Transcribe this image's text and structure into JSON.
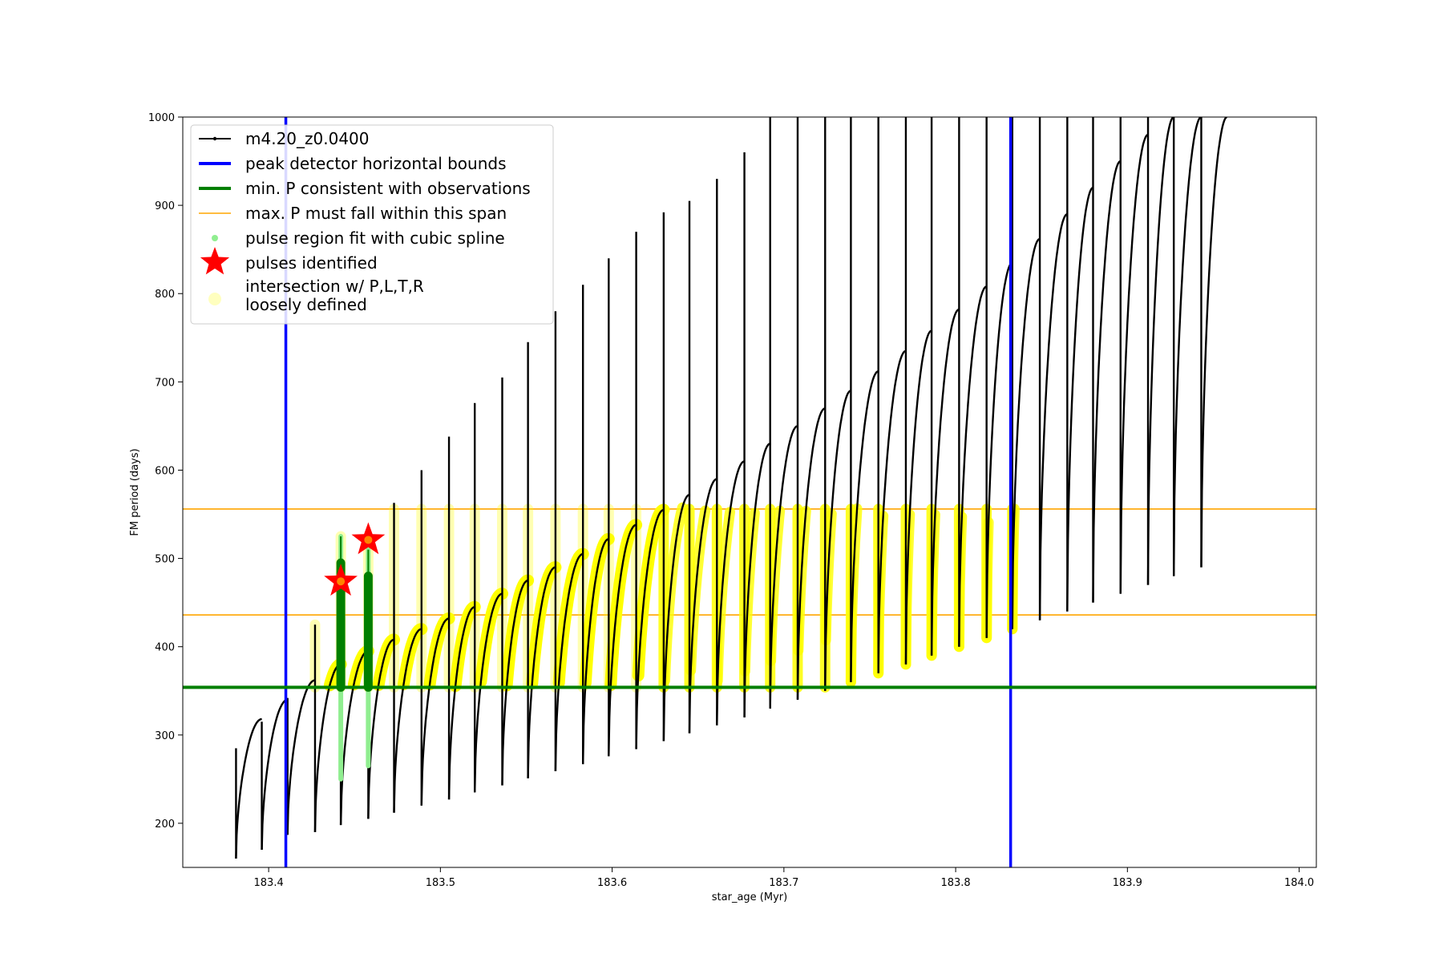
{
  "chart_data": {
    "type": "scatter",
    "title": "",
    "xlabel": "star_age (Myr)",
    "ylabel": "FM period (days)",
    "xlim": [
      183.35,
      184.01
    ],
    "ylim": [
      150,
      1000
    ],
    "xticks": [
      183.4,
      183.5,
      183.6,
      183.7,
      183.8,
      183.9,
      184.0
    ],
    "xtick_labels": [
      "183.4",
      "183.5",
      "183.6",
      "183.7",
      "183.8",
      "183.9",
      "184.0"
    ],
    "yticks": [
      200,
      300,
      400,
      500,
      600,
      700,
      800,
      900,
      1000
    ],
    "ytick_labels": [
      "200",
      "300",
      "400",
      "500",
      "600",
      "700",
      "800",
      "900",
      "1000"
    ],
    "grid": false,
    "legend_position": "upper-left",
    "legend": [
      {
        "label": "m4.20_z0.0400",
        "style": "black-line-dot"
      },
      {
        "label": "peak detector horizontal bounds",
        "style": "blue-thick-line"
      },
      {
        "label": "min. P consistent with observations",
        "style": "green-thick-line"
      },
      {
        "label": "max. P must fall within this span",
        "style": "orange-thin-line"
      },
      {
        "label": "pulse region fit with cubic spline",
        "style": "lightgreen-dot"
      },
      {
        "label": "pulses identified",
        "style": "red-star"
      },
      {
        "label_lines": [
          "intersection w/ P,L,T,R",
          "loosely defined"
        ],
        "style": "yellow-faint-dot"
      }
    ],
    "vertical_bounds": {
      "x": [
        183.41,
        183.832
      ],
      "color": "#0000ff"
    },
    "min_period_line": {
      "y": 354,
      "color": "#007f00"
    },
    "max_period_span": {
      "y": [
        436,
        556
      ],
      "color": "#ffa500"
    },
    "pulses_identified": [
      {
        "x": 183.442,
        "y": 474
      },
      {
        "x": 183.458,
        "y": 521
      }
    ],
    "spline_fit_regions": [
      {
        "x": 183.442,
        "y_range": [
          250,
          525
        ]
      },
      {
        "x": 183.458,
        "y_range": [
          265,
          510
        ]
      }
    ],
    "model_track": {
      "name": "m4.20_z0.0400",
      "color": "#000000",
      "pulse_cycles": [
        {
          "start": 183.381,
          "end": 183.396,
          "y_start": 160,
          "y_peak": 318,
          "y_spike": 285
        },
        {
          "start": 183.396,
          "end": 183.411,
          "y_start": 170,
          "y_peak": 340,
          "y_spike": 315
        },
        {
          "start": 183.411,
          "end": 183.427,
          "y_start": 187,
          "y_peak": 362,
          "y_spike": 342
        },
        {
          "start": 183.427,
          "end": 183.442,
          "y_start": 190,
          "y_peak": 380,
          "y_spike": 425
        },
        {
          "start": 183.442,
          "end": 183.458,
          "y_start": 198,
          "y_peak": 395,
          "y_spike": 525
        },
        {
          "start": 183.458,
          "end": 183.473,
          "y_start": 205,
          "y_peak": 408,
          "y_spike": 510
        },
        {
          "start": 183.473,
          "end": 183.489,
          "y_start": 212,
          "y_peak": 420,
          "y_spike": 563
        },
        {
          "start": 183.489,
          "end": 183.505,
          "y_start": 220,
          "y_peak": 432,
          "y_spike": 600
        },
        {
          "start": 183.505,
          "end": 183.52,
          "y_start": 227,
          "y_peak": 445,
          "y_spike": 638
        },
        {
          "start": 183.52,
          "end": 183.536,
          "y_start": 235,
          "y_peak": 460,
          "y_spike": 676
        },
        {
          "start": 183.536,
          "end": 183.551,
          "y_start": 243,
          "y_peak": 475,
          "y_spike": 705
        },
        {
          "start": 183.551,
          "end": 183.567,
          "y_start": 251,
          "y_peak": 490,
          "y_spike": 745
        },
        {
          "start": 183.567,
          "end": 183.583,
          "y_start": 259,
          "y_peak": 505,
          "y_spike": 780
        },
        {
          "start": 183.583,
          "end": 183.598,
          "y_start": 267,
          "y_peak": 522,
          "y_spike": 810
        },
        {
          "start": 183.598,
          "end": 183.614,
          "y_start": 276,
          "y_peak": 538,
          "y_spike": 840
        },
        {
          "start": 183.614,
          "end": 183.63,
          "y_start": 284,
          "y_peak": 555,
          "y_spike": 870
        },
        {
          "start": 183.63,
          "end": 183.645,
          "y_start": 293,
          "y_peak": 572,
          "y_spike": 892
        },
        {
          "start": 183.645,
          "end": 183.661,
          "y_start": 302,
          "y_peak": 590,
          "y_spike": 905
        },
        {
          "start": 183.661,
          "end": 183.677,
          "y_start": 311,
          "y_peak": 610,
          "y_spike": 930
        },
        {
          "start": 183.677,
          "end": 183.692,
          "y_start": 320,
          "y_peak": 630,
          "y_spike": 960
        },
        {
          "start": 183.692,
          "end": 183.708,
          "y_start": 330,
          "y_peak": 650,
          "y_spike": 1000
        },
        {
          "start": 183.708,
          "end": 183.724,
          "y_start": 340,
          "y_peak": 670,
          "y_spike": 1000
        },
        {
          "start": 183.724,
          "end": 183.739,
          "y_start": 350,
          "y_peak": 690,
          "y_spike": 1000
        },
        {
          "start": 183.739,
          "end": 183.755,
          "y_start": 360,
          "y_peak": 712,
          "y_spike": 1000
        },
        {
          "start": 183.755,
          "end": 183.771,
          "y_start": 370,
          "y_peak": 735,
          "y_spike": 1000
        },
        {
          "start": 183.771,
          "end": 183.786,
          "y_start": 380,
          "y_peak": 758,
          "y_spike": 1000
        },
        {
          "start": 183.786,
          "end": 183.802,
          "y_start": 390,
          "y_peak": 782,
          "y_spike": 1000
        },
        {
          "start": 183.802,
          "end": 183.818,
          "y_start": 400,
          "y_peak": 808,
          "y_spike": 1000
        },
        {
          "start": 183.818,
          "end": 183.833,
          "y_start": 410,
          "y_peak": 835,
          "y_spike": 1000
        },
        {
          "start": 183.833,
          "end": 183.849,
          "y_start": 420,
          "y_peak": 862,
          "y_spike": 1000
        },
        {
          "start": 183.849,
          "end": 183.865,
          "y_start": 430,
          "y_peak": 890,
          "y_spike": 1000
        },
        {
          "start": 183.865,
          "end": 183.88,
          "y_start": 440,
          "y_peak": 920,
          "y_spike": 1000
        },
        {
          "start": 183.88,
          "end": 183.896,
          "y_start": 450,
          "y_peak": 950,
          "y_spike": 1000
        },
        {
          "start": 183.896,
          "end": 183.912,
          "y_start": 460,
          "y_peak": 980,
          "y_spike": 1000
        },
        {
          "start": 183.912,
          "end": 183.927,
          "y_start": 470,
          "y_peak": 1000,
          "y_spike": 1000
        },
        {
          "start": 183.927,
          "end": 183.943,
          "y_start": 480,
          "y_peak": 1000,
          "y_spike": 1000
        },
        {
          "start": 183.943,
          "end": 183.958,
          "y_start": 490,
          "y_peak": 1000,
          "y_spike": 1000
        }
      ]
    }
  }
}
